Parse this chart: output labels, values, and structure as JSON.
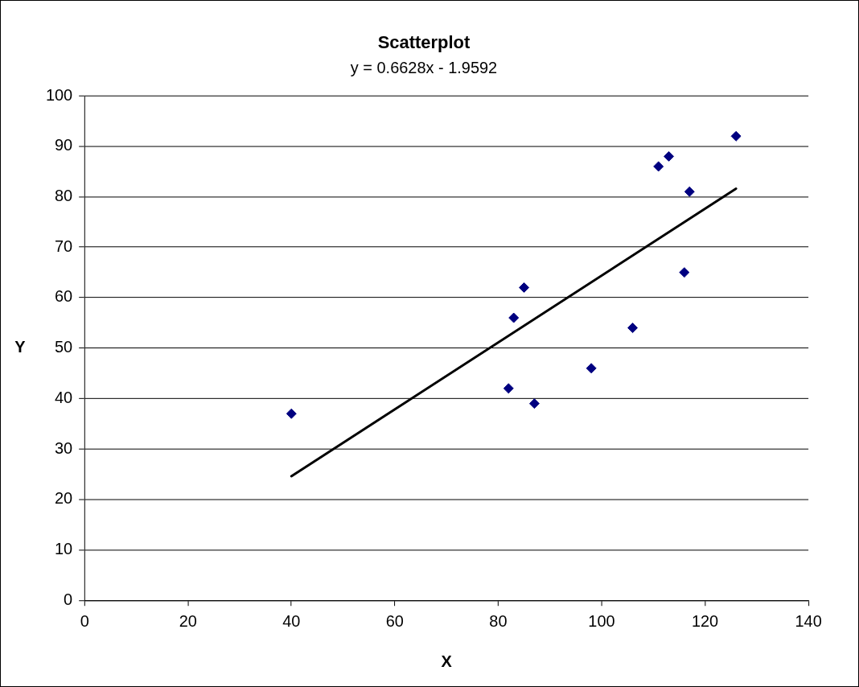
{
  "chart_data": {
    "type": "scatter",
    "title": "Scatterplot",
    "subtitle": "y = 0.6628x - 1.9592",
    "xlabel": "X",
    "ylabel": "Y",
    "series": [
      {
        "color": "#000080",
        "marker": "diamond",
        "x": [
          40,
          82,
          83,
          85,
          87,
          98,
          106,
          111,
          113,
          116,
          117,
          126
        ],
        "values": [
          37,
          42,
          56,
          62,
          39,
          46,
          54,
          86,
          88,
          65,
          81,
          92
        ]
      },
      {
        "type": "line",
        "color": "#000000",
        "marker": "none",
        "x": [
          40,
          126
        ],
        "values": [
          24.6,
          81.6
        ]
      }
    ],
    "xlim": [
      0,
      140
    ],
    "xticks": [
      0,
      20,
      40,
      60,
      80,
      100,
      120,
      140
    ],
    "ylim": [
      0,
      100
    ],
    "yticks": [
      0,
      10,
      20,
      30,
      40,
      50,
      60,
      70,
      80,
      90,
      100
    ],
    "grid": "y",
    "legend": false
  }
}
